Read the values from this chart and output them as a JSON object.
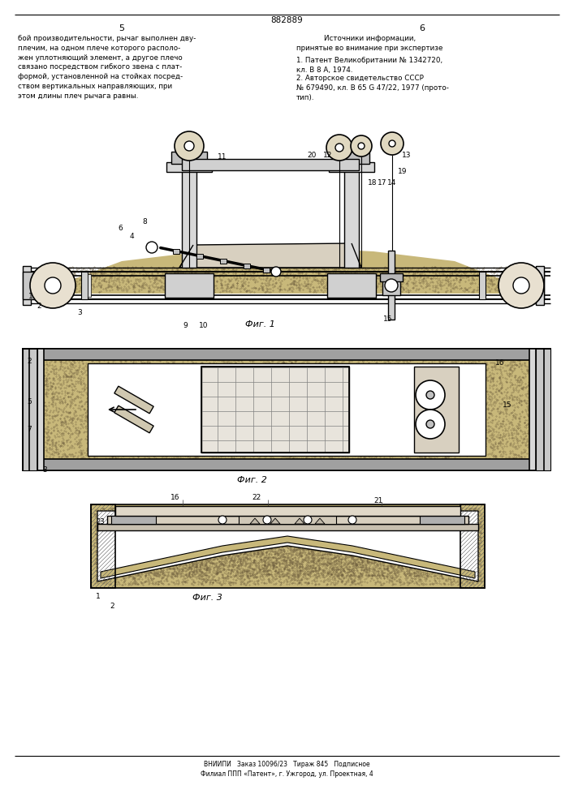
{
  "page_number_left": "5",
  "page_number_right": "6",
  "patent_number": "882889",
  "bg_color": "#ffffff",
  "text_color": "#000000",
  "line_color": "#000000",
  "sand_color": "#c8b87a",
  "sand_dark": "#b0a060",
  "gray_light": "#e0e0e0",
  "gray_med": "#c0c0c0",
  "gray_dark": "#909090",
  "text_left": "бой производительности, рычаг выполнен дву-\nплечим, на одном плече которого располо-\nжен уплотняющий элемент, а другое плечо\nсвязано посредством гибкого звена с плат-\nформой, установленной на стойках посред-\nством вертикальных направляющих, при\nэтом длины плеч рычага равны.",
  "text_right_title": "Источники информации,\nпринятые во внимание при экспертизе",
  "text_right_1": "1. Патент Великобритании № 1342720,\nкл. В 8 А, 1974.",
  "text_right_2": "2. Авторское свидетельство СССР\n№ 679490, кл. В 65 G 47/22, 1977 (прото-\nтип).",
  "fig1_label": "Фиг. 1",
  "fig2_label": "Фиг. 2",
  "fig3_label": "Фиг. 3",
  "footer": "ВНИИПИ   Заказ 10096/23   Тираж 845   Подписное\nФилиал ППП «Патент», г. Ужгород, ул. Проектная, 4"
}
